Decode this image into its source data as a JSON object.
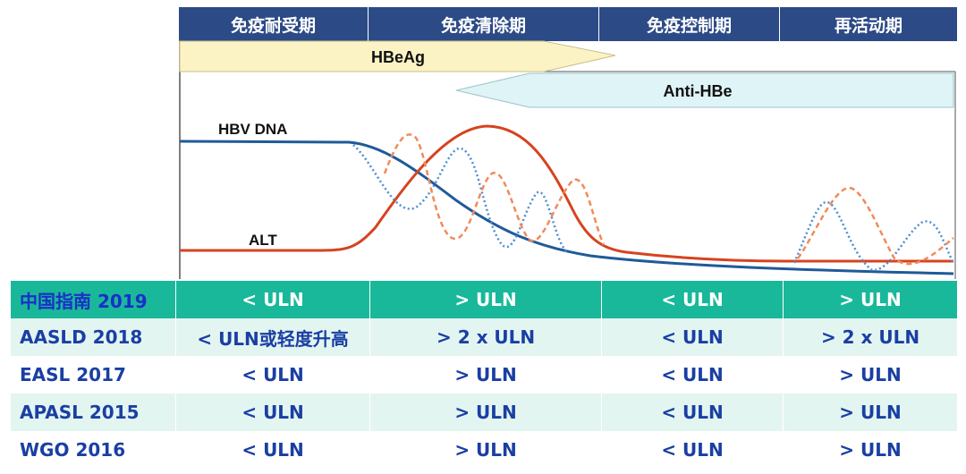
{
  "phases": [
    "免疫耐受期",
    "免疫清除期",
    "免疫控制期",
    "再活动期"
  ],
  "markers": {
    "hbeag": "HBeAg",
    "anti_hbe": "Anti-HBe",
    "hbv_dna": "HBV DNA",
    "alt": "ALT"
  },
  "colors": {
    "header_bg": "#2c4a86",
    "hbeag_fill": "#fbf3c4",
    "anti_hbe_fill": "#def4f6",
    "dna_line": "#1f5a99",
    "alt_line": "#d6431f",
    "dotted_blue": "#4d8ed1",
    "dashed_orange": "#f08b5a",
    "highlight_row": "#19b89a",
    "alt_row": "#e3f5f1",
    "row_text": "#1a3fa3"
  },
  "guidelines": [
    {
      "name": "中国指南 2019",
      "values": [
        "< ULN",
        "> ULN",
        "< ULN",
        "> ULN"
      ],
      "style": "highlight"
    },
    {
      "name": "AASLD 2018",
      "values": [
        "< ULN或轻度升高",
        "> 2 x ULN",
        "< ULN",
        "> 2 x ULN"
      ],
      "style": "alt"
    },
    {
      "name": "EASL 2017",
      "values": [
        "< ULN",
        "> ULN",
        "< ULN",
        "> ULN"
      ],
      "style": "plain"
    },
    {
      "name": "APASL 2015",
      "values": [
        "< ULN",
        "> ULN",
        "< ULN",
        "> ULN"
      ],
      "style": "alt"
    },
    {
      "name": "WGO 2016",
      "values": [
        "< ULN",
        "> ULN",
        "< ULN",
        "> ULN"
      ],
      "style": "plain"
    }
  ]
}
